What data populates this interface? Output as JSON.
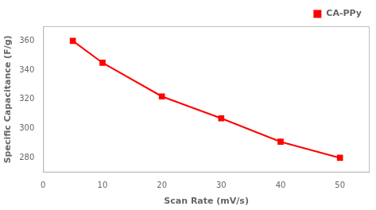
{
  "chart_data": {
    "type": "line",
    "x": [
      5,
      10,
      20,
      30,
      40,
      50
    ],
    "series": [
      {
        "name": "CA-PPy",
        "color": "#ff0000",
        "marker": "square",
        "values": [
          360,
          345,
          322,
          307,
          291,
          280
        ]
      }
    ],
    "xlabel": "Scan Rate (mV/s)",
    "ylabel": "Specific Capacitance (F/g)",
    "xlim": [
      0,
      55
    ],
    "ylim": [
      270,
      370
    ],
    "xticks": [
      0,
      10,
      20,
      30,
      40,
      50
    ],
    "yticks": [
      280,
      300,
      320,
      340,
      360
    ],
    "legend": "upper right",
    "grid": false
  }
}
